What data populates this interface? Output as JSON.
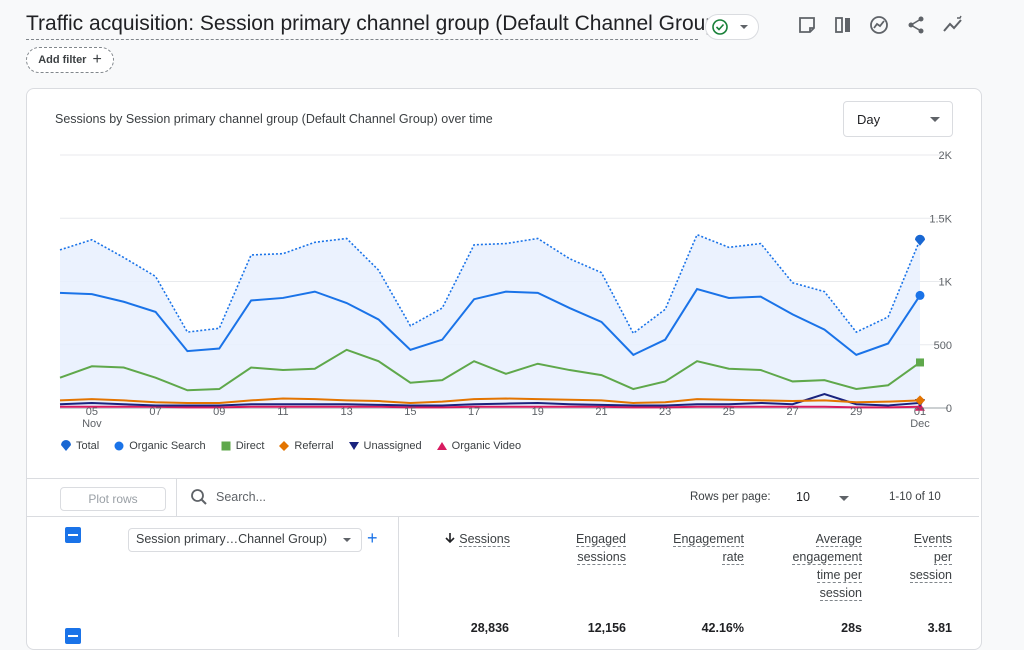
{
  "header": {
    "title": "Traffic acquisition: Session primary channel group (Default Channel Group)",
    "add_filter_label": "Add filter",
    "icons": [
      "note-icon",
      "compare-icon",
      "insights-icon",
      "share-icon",
      "trend-icon"
    ]
  },
  "chart_card": {
    "title": "Sessions by Session primary channel group (Default Channel Group) over time",
    "granularity": "Day"
  },
  "chart_data": {
    "type": "line",
    "x": [
      "Nov 04",
      "Nov 05",
      "Nov 06",
      "Nov 07",
      "Nov 08",
      "Nov 09",
      "Nov 10",
      "Nov 11",
      "Nov 12",
      "Nov 13",
      "Nov 14",
      "Nov 15",
      "Nov 16",
      "Nov 17",
      "Nov 18",
      "Nov 19",
      "Nov 20",
      "Nov 21",
      "Nov 22",
      "Nov 23",
      "Nov 24",
      "Nov 25",
      "Nov 26",
      "Nov 27",
      "Nov 28",
      "Nov 29",
      "Nov 30",
      "Dec 01"
    ],
    "x_tick_labels": [
      "05",
      "07",
      "09",
      "11",
      "13",
      "15",
      "17",
      "19",
      "21",
      "23",
      "25",
      "27",
      "29",
      "01"
    ],
    "x_tick_sublabels": {
      "05": "Nov",
      "01": "Dec"
    },
    "y_tick_labels": [
      "0",
      "500",
      "1K",
      "1.5K",
      "2K"
    ],
    "ylim": [
      0,
      2000
    ],
    "grid": true,
    "legend_position": "bottom",
    "series": [
      {
        "name": "Total",
        "color": "#1a73e8",
        "style": "dotted-area",
        "values": [
          1250,
          1330,
          1190,
          1040,
          600,
          630,
          1210,
          1220,
          1310,
          1340,
          1090,
          650,
          790,
          1290,
          1300,
          1340,
          1180,
          1070,
          590,
          780,
          1370,
          1270,
          1300,
          990,
          920,
          600,
          720,
          1330
        ]
      },
      {
        "name": "Organic Search",
        "color": "#1a73e8",
        "style": "line",
        "values": [
          910,
          900,
          840,
          760,
          450,
          470,
          850,
          870,
          920,
          830,
          700,
          460,
          540,
          860,
          920,
          910,
          790,
          680,
          420,
          540,
          940,
          870,
          880,
          740,
          620,
          420,
          510,
          890
        ]
      },
      {
        "name": "Direct",
        "color": "#5fa84b",
        "style": "line",
        "values": [
          240,
          330,
          320,
          240,
          140,
          150,
          320,
          300,
          310,
          460,
          370,
          200,
          220,
          370,
          270,
          350,
          300,
          260,
          150,
          210,
          370,
          310,
          300,
          210,
          220,
          150,
          180,
          360
        ]
      },
      {
        "name": "Referral",
        "color": "#e37400",
        "style": "line",
        "values": [
          60,
          70,
          60,
          45,
          40,
          40,
          60,
          75,
          70,
          60,
          55,
          40,
          50,
          70,
          75,
          70,
          65,
          60,
          40,
          45,
          70,
          65,
          60,
          55,
          60,
          45,
          50,
          60
        ]
      },
      {
        "name": "Unassigned",
        "color": "#1a237e",
        "style": "line",
        "values": [
          30,
          40,
          30,
          20,
          20,
          20,
          30,
          30,
          30,
          30,
          25,
          20,
          20,
          30,
          35,
          40,
          30,
          25,
          20,
          20,
          30,
          30,
          40,
          30,
          110,
          30,
          20,
          40
        ]
      },
      {
        "name": "Organic Video",
        "color": "#d81b60",
        "style": "line",
        "values": [
          10,
          10,
          10,
          10,
          5,
          5,
          10,
          10,
          10,
          10,
          10,
          5,
          5,
          10,
          10,
          10,
          10,
          10,
          5,
          5,
          10,
          10,
          10,
          10,
          10,
          5,
          5,
          10
        ]
      }
    ]
  },
  "table": {
    "plot_rows_label": "Plot rows",
    "search_placeholder": "Search...",
    "rows_per_page_label": "Rows per page:",
    "rows_per_page_value": "10",
    "pagination": "1-10 of 10",
    "dimension_select": "Session primary…Channel Group)",
    "columns": [
      {
        "label": "Sessions",
        "sorted": true,
        "total": "28,836"
      },
      {
        "label": "Engaged sessions",
        "sorted": false,
        "total": "12,156"
      },
      {
        "label": "Engagement rate",
        "sorted": false,
        "total": "42.16%"
      },
      {
        "label": "Average engagement time per session",
        "sorted": false,
        "total": "28s"
      },
      {
        "label": "Events per session",
        "sorted": false,
        "total": "3.81"
      }
    ]
  }
}
